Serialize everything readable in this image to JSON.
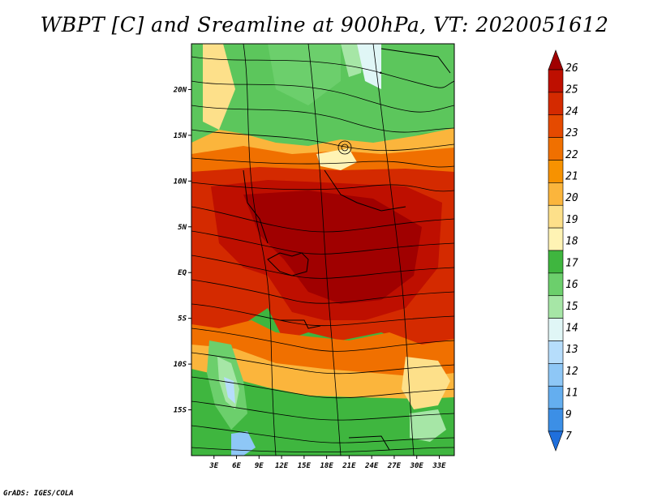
{
  "title": "WBPT [C] and Sreamline at 900hPa, VT: 2020051612",
  "credit": "GrADS: IGES/COLA",
  "map": {
    "variable": "WBPT [C]",
    "overlay": "Sreamline",
    "level": "900hPa",
    "valid_time": "2020051612",
    "lon_range": [
      0,
      35
    ],
    "lat_range": [
      -20,
      25
    ],
    "lat_ticks": [
      {
        "value": 20,
        "label": "20N"
      },
      {
        "value": 15,
        "label": "15N"
      },
      {
        "value": 10,
        "label": "10N"
      },
      {
        "value": 5,
        "label": "5N"
      },
      {
        "value": 0,
        "label": "EQ"
      },
      {
        "value": -5,
        "label": "5S"
      },
      {
        "value": -10,
        "label": "10S"
      },
      {
        "value": -15,
        "label": "15S"
      }
    ],
    "lon_ticks": [
      {
        "value": 3,
        "label": "3E"
      },
      {
        "value": 6,
        "label": "6E"
      },
      {
        "value": 9,
        "label": "9E"
      },
      {
        "value": 12,
        "label": "12E"
      },
      {
        "value": 15,
        "label": "15E"
      },
      {
        "value": 18,
        "label": "18E"
      },
      {
        "value": 21,
        "label": "21E"
      },
      {
        "value": 24,
        "label": "24E"
      },
      {
        "value": 27,
        "label": "27E"
      },
      {
        "value": 30,
        "label": "30E"
      },
      {
        "value": 33,
        "label": "33E"
      }
    ]
  },
  "colorbar": {
    "levels": [
      "26",
      "25",
      "24",
      "23",
      "22",
      "21",
      "20",
      "19",
      "18",
      "17",
      "16",
      "15",
      "14",
      "13",
      "12",
      "11",
      "9",
      "7"
    ],
    "colors": [
      "#a00000",
      "#be0f00",
      "#d42a00",
      "#e54a00",
      "#f07000",
      "#f79200",
      "#fbb53c",
      "#fde08a",
      "#fff3b4",
      "#3fb63f",
      "#6ccf6c",
      "#a6e6a6",
      "#e0f6f6",
      "#b6ddfb",
      "#8ec7f6",
      "#64aeef",
      "#3c8fe6",
      "#1f6fdc"
    ]
  }
}
